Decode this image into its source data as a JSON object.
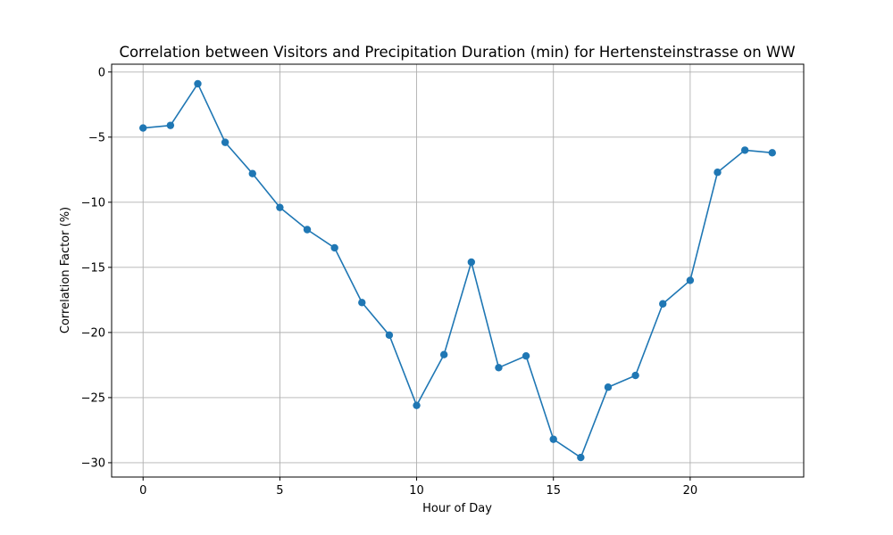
{
  "chart_data": {
    "type": "line",
    "title": "Correlation between Visitors and Precipitation Duration (min) for Hertensteinstrasse on WW",
    "xlabel": "Hour of Day",
    "ylabel": "Correlation Factor (%)",
    "x": [
      0,
      1,
      2,
      3,
      4,
      5,
      6,
      7,
      8,
      9,
      10,
      11,
      12,
      13,
      14,
      15,
      16,
      17,
      18,
      19,
      20,
      21,
      22,
      23
    ],
    "series": [
      {
        "values": [
          -4.3,
          -4.1,
          -0.9,
          -5.4,
          -7.8,
          -10.4,
          -12.1,
          -13.5,
          -17.7,
          -20.2,
          -25.6,
          -21.7,
          -14.6,
          -22.7,
          -21.8,
          -28.2,
          -29.6,
          -24.2,
          -23.3,
          -17.8,
          -16.0,
          -7.7,
          -6.0,
          -6.2
        ],
        "color": "#1f77b4"
      }
    ],
    "xlim": [
      -1.15,
      24.15
    ],
    "ylim": [
      -31.1,
      0.6
    ],
    "xticks": [
      0,
      5,
      10,
      15,
      20
    ],
    "yticks": [
      0,
      -5,
      -10,
      -15,
      -20,
      -25,
      -30
    ],
    "xtick_labels": [
      "0",
      "5",
      "10",
      "15",
      "20"
    ],
    "ytick_labels": [
      "0",
      "−5",
      "−10",
      "−15",
      "−20",
      "−25",
      "−30"
    ],
    "grid": true
  }
}
